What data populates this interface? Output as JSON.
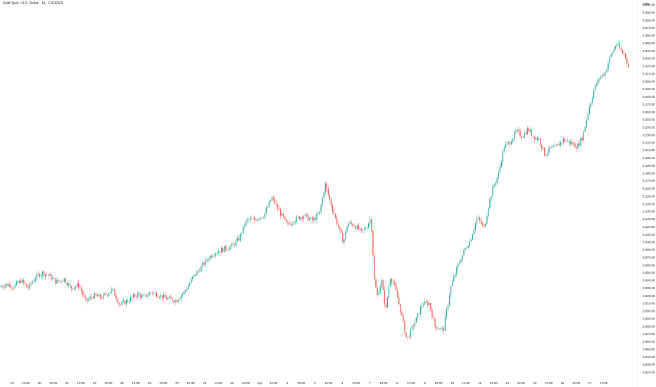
{
  "header": {
    "title": "Gold Spot / U.S. Dollar · 1h · FXOPEN",
    "unit": "USD"
  },
  "chart_data": {
    "type": "candlestick",
    "title": "Gold Spot / U.S. Dollar · 1h · FXOPEN",
    "ylabel": "USD",
    "ylim": [
      2920,
      3400
    ],
    "grid": false,
    "colors": {
      "up": "#26a69a",
      "down": "#ef5350",
      "text": "#131722"
    },
    "y_ticks": [
      "2,920.00",
      "2,930.00",
      "2,940.00",
      "2,950.00",
      "2,960.00",
      "2,970.00",
      "2,980.00",
      "2,990.00",
      "3,000.00",
      "3,010.00",
      "3,020.00",
      "3,030.00",
      "3,040.00",
      "3,050.00",
      "3,060.00",
      "3,070.00",
      "3,080.00",
      "3,090.00",
      "3,100.00",
      "3,110.00",
      "3,120.00",
      "3,130.00",
      "3,140.00",
      "3,150.00",
      "3,160.00",
      "3,170.00",
      "3,180.00",
      "3,190.00",
      "3,200.00",
      "3,210.00",
      "3,220.00",
      "3,230.00",
      "3,240.00",
      "3,250.00",
      "3,260.00",
      "3,270.00",
      "3,280.00",
      "3,290.00",
      "3,300.00",
      "3,310.00",
      "3,320.00",
      "3,330.00",
      "3,340.00",
      "3,350.00",
      "3,360.00",
      "3,370.00",
      "3,380.00",
      "3,390.00",
      "3,400.00"
    ],
    "x_ticks": [
      "19",
      "12:00",
      "20",
      "12:00",
      "21",
      "12:00",
      "24",
      "12:00",
      "25",
      "12:00",
      "26",
      "12:00",
      "27",
      "12:00",
      "28",
      "12:00",
      "31",
      "12:00",
      "Apr",
      "12:00",
      "2",
      "12:00",
      "3",
      "12:00",
      "4",
      "12:00",
      "7",
      "12:00",
      "8",
      "12:00",
      "9",
      "12:00",
      "10",
      "12:00",
      "11",
      "12:00",
      "14",
      "12:00",
      "15",
      "12:00",
      "16",
      "12:00",
      "17",
      "12:00"
    ],
    "close_path": [
      [
        0,
        3032
      ],
      [
        10,
        3035
      ],
      [
        20,
        3032
      ],
      [
        30,
        3040
      ],
      [
        40,
        3030
      ],
      [
        50,
        3044
      ],
      [
        60,
        3050
      ],
      [
        70,
        3046
      ],
      [
        80,
        3038
      ],
      [
        92,
        3042
      ],
      [
        100,
        3030
      ],
      [
        112,
        3034
      ],
      [
        122,
        3012
      ],
      [
        132,
        3020
      ],
      [
        145,
        3018
      ],
      [
        160,
        3028
      ],
      [
        170,
        3008
      ],
      [
        182,
        3014
      ],
      [
        195,
        3022
      ],
      [
        205,
        3018
      ],
      [
        215,
        3025
      ],
      [
        228,
        3020
      ],
      [
        238,
        3016
      ],
      [
        250,
        3014
      ],
      [
        262,
        3025
      ],
      [
        275,
        3045
      ],
      [
        288,
        3060
      ],
      [
        302,
        3075
      ],
      [
        315,
        3080
      ],
      [
        330,
        3085
      ],
      [
        340,
        3095
      ],
      [
        350,
        3118
      ],
      [
        362,
        3120
      ],
      [
        375,
        3125
      ],
      [
        386,
        3148
      ],
      [
        396,
        3132
      ],
      [
        408,
        3112
      ],
      [
        420,
        3120
      ],
      [
        432,
        3125
      ],
      [
        444,
        3118
      ],
      [
        454,
        3128
      ],
      [
        462,
        3166
      ],
      [
        470,
        3140
      ],
      [
        480,
        3112
      ],
      [
        488,
        3090
      ],
      [
        494,
        3115
      ],
      [
        504,
        3112
      ],
      [
        514,
        3102
      ],
      [
        522,
        3112
      ],
      [
        527,
        3122
      ],
      [
        532,
        3040
      ],
      [
        536,
        3020
      ],
      [
        542,
        3040
      ],
      [
        548,
        3000
      ],
      [
        554,
        3045
      ],
      [
        560,
        3035
      ],
      [
        568,
        3005
      ],
      [
        578,
        2962
      ],
      [
        584,
        2975
      ],
      [
        592,
        2990
      ],
      [
        600,
        3010
      ],
      [
        610,
        3010
      ],
      [
        618,
        2980
      ],
      [
        630,
        2975
      ],
      [
        640,
        3030
      ],
      [
        650,
        3058
      ],
      [
        660,
        3080
      ],
      [
        668,
        3092
      ],
      [
        678,
        3122
      ],
      [
        688,
        3108
      ],
      [
        694,
        3138
      ],
      [
        700,
        3160
      ],
      [
        708,
        3178
      ],
      [
        716,
        3215
      ],
      [
        724,
        3220
      ],
      [
        734,
        3235
      ],
      [
        742,
        3228
      ],
      [
        750,
        3238
      ],
      [
        758,
        3228
      ],
      [
        766,
        3224
      ],
      [
        774,
        3205
      ],
      [
        782,
        3212
      ],
      [
        790,
        3214
      ],
      [
        800,
        3224
      ],
      [
        810,
        3220
      ],
      [
        820,
        3215
      ],
      [
        828,
        3228
      ],
      [
        836,
        3262
      ],
      [
        844,
        3290
      ],
      [
        852,
        3305
      ],
      [
        860,
        3312
      ],
      [
        866,
        3330
      ],
      [
        872,
        3342
      ],
      [
        876,
        3350
      ],
      [
        882,
        3340
      ],
      [
        888,
        3335
      ],
      [
        893,
        3318
      ]
    ]
  }
}
